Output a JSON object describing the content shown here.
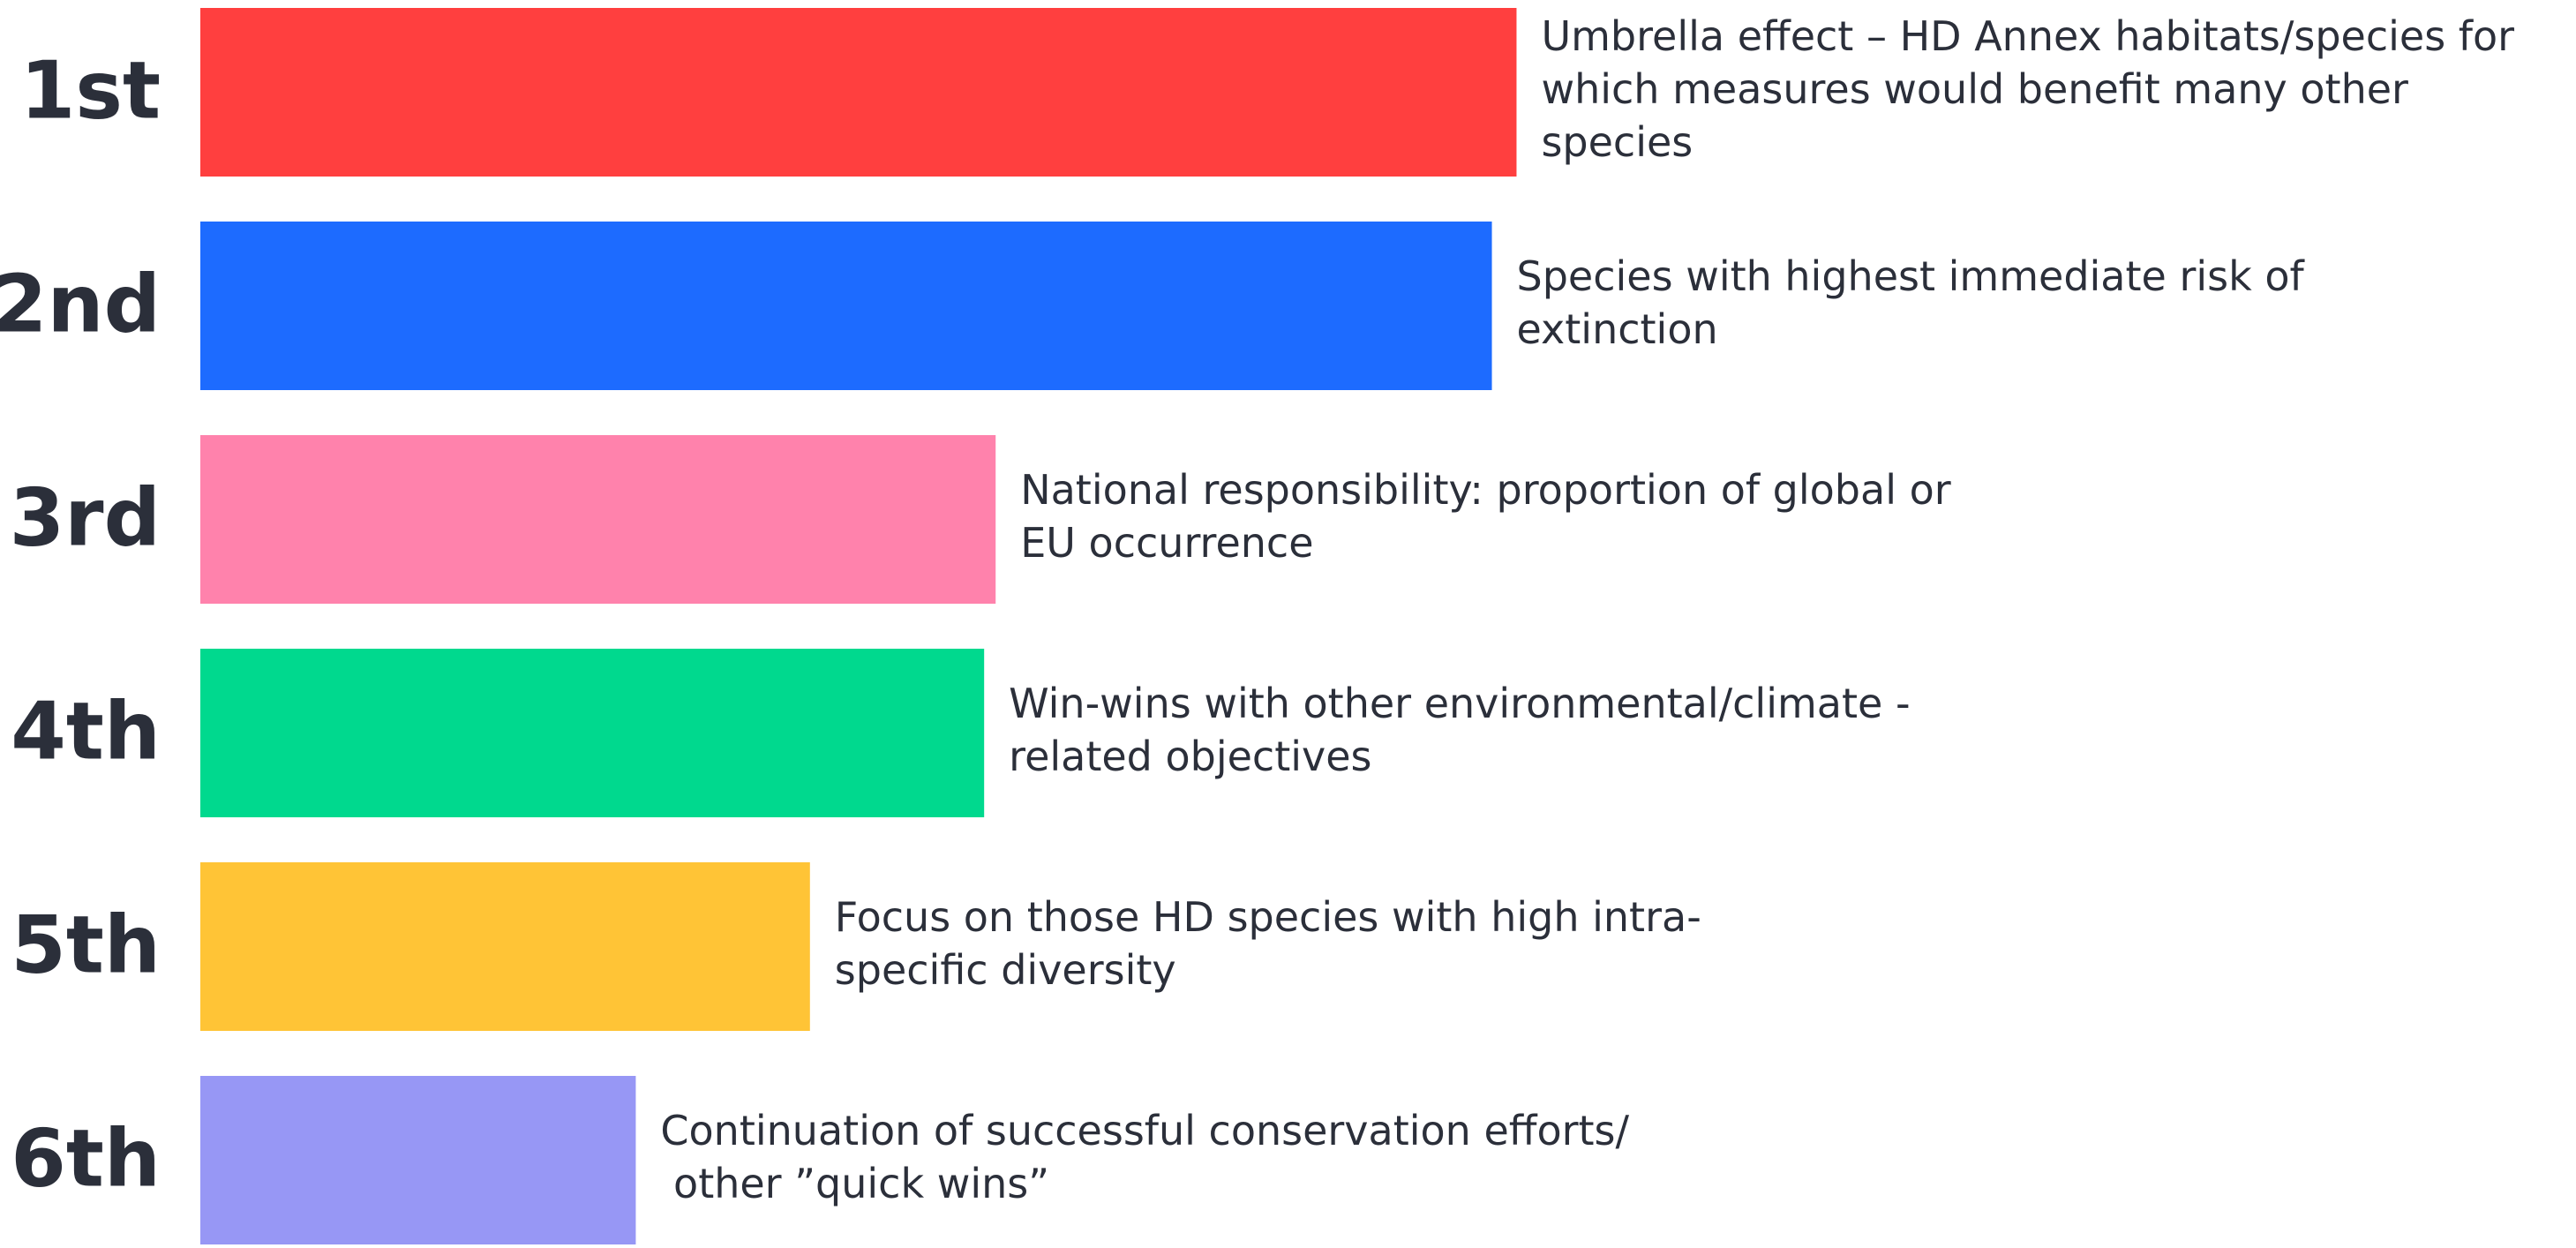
{
  "chart_data": {
    "type": "bar",
    "orientation": "horizontal",
    "categories": [
      "1st",
      "2nd",
      "3rd",
      "4th",
      "5th",
      "6th"
    ],
    "descriptions": [
      [
        "Umbrella effect – HD Annex habitats/species for",
        "which measures would benefit many other",
        "species"
      ],
      [
        "Species with highest immediate risk of",
        "extinction"
      ],
      [
        "National responsibility: proportion of global or",
        "EU occurrence"
      ],
      [
        "Win-wins with other environmental/climate -",
        "related objectives"
      ],
      [
        "Focus on those HD species with high intra-",
        "specific diversity"
      ],
      [
        "Continuation of successful conservation efforts/",
        " other ”quick wins”"
      ]
    ],
    "values": [
      801,
      786,
      484,
      477,
      371,
      265
    ],
    "colors": [
      "#ff3f3f",
      "#1d6bff",
      "#ff82ac",
      "#00d98e",
      "#ffc436",
      "#9797f5"
    ],
    "xlim": [
      0,
      1000
    ]
  }
}
